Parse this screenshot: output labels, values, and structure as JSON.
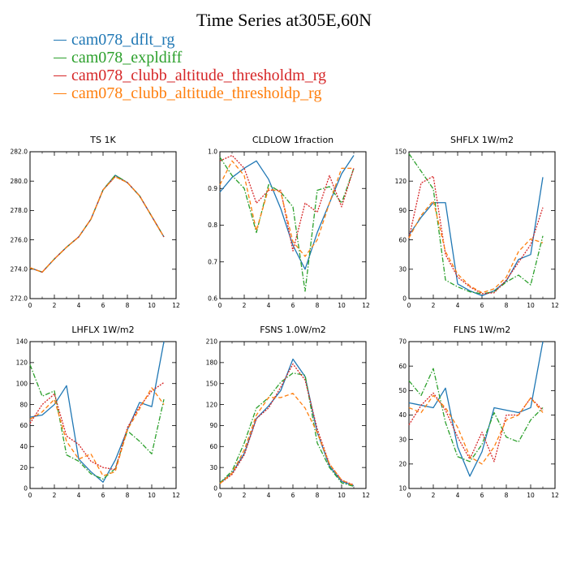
{
  "title": "Time Series at305E,60N",
  "series_meta": [
    {
      "name": "cam078_dflt_rg",
      "color": "#1f77b4",
      "dash": ""
    },
    {
      "name": "cam078_expldiff",
      "color": "#2ca02c",
      "dash": "6,2,1.5,2"
    },
    {
      "name": "cam078_clubb_altitude_thresholdm_rg",
      "color": "#d62728",
      "dash": "2,1.5"
    },
    {
      "name": "cam078_clubb_altitude_thresholdp_rg",
      "color": "#ff7f0e",
      "dash": "5,3"
    }
  ],
  "chart_data": [
    {
      "type": "line",
      "title": "TS 1K",
      "xlim": [
        0,
        12
      ],
      "ylim": [
        272,
        282
      ],
      "xticks": [
        0,
        2,
        4,
        6,
        8,
        10,
        12
      ],
      "xtick_labels": [
        "0",
        "2",
        "4",
        "6",
        "8",
        "10",
        "12"
      ],
      "yticks": [
        272,
        274,
        276,
        278,
        280,
        282
      ],
      "ytick_labels": [
        "272.0",
        "274.0",
        "276.0",
        "278.0",
        "280.0",
        "282.0"
      ],
      "x": [
        0,
        1,
        2,
        3,
        4,
        5,
        6,
        7,
        8,
        9,
        10,
        11
      ],
      "series": [
        {
          "name": "cam078_dflt_rg",
          "values": [
            274.1,
            273.8,
            274.7,
            275.5,
            276.2,
            277.4,
            279.4,
            280.4,
            279.9,
            279.0,
            277.6,
            276.2
          ]
        },
        {
          "name": "cam078_expldiff",
          "values": [
            274.1,
            273.8,
            274.7,
            275.5,
            276.2,
            277.4,
            279.4,
            280.4,
            279.9,
            279.0,
            277.6,
            276.2
          ]
        },
        {
          "name": "cam078_clubb_altitude_thresholdm_rg",
          "values": [
            274.1,
            273.8,
            274.7,
            275.5,
            276.2,
            277.4,
            279.4,
            280.3,
            279.9,
            279.0,
            277.6,
            276.2
          ]
        },
        {
          "name": "cam078_clubb_altitude_thresholdp_rg",
          "values": [
            274.1,
            273.8,
            274.7,
            275.5,
            276.2,
            277.4,
            279.4,
            280.3,
            279.9,
            279.0,
            277.6,
            276.2
          ]
        }
      ]
    },
    {
      "type": "line",
      "title": "CLDLOW 1fraction",
      "xlim": [
        0,
        12
      ],
      "ylim": [
        0.6,
        1.0
      ],
      "xticks": [
        0,
        2,
        4,
        6,
        8,
        10,
        12
      ],
      "xtick_labels": [
        "0",
        "2",
        "4",
        "6",
        "8",
        "10",
        "12"
      ],
      "yticks": [
        0.6,
        0.7,
        0.8,
        0.9,
        1.0
      ],
      "ytick_labels": [
        "0.6",
        "0.7",
        "0.8",
        "0.9",
        "1.0"
      ],
      "x": [
        0,
        1,
        2,
        3,
        4,
        5,
        6,
        7,
        8,
        9,
        10,
        11
      ],
      "series": [
        {
          "name": "cam078_dflt_rg",
          "values": [
            0.89,
            0.93,
            0.955,
            0.975,
            0.925,
            0.845,
            0.745,
            0.68,
            0.78,
            0.86,
            0.94,
            0.99
          ]
        },
        {
          "name": "cam078_expldiff",
          "values": [
            0.985,
            0.935,
            0.9,
            0.78,
            0.91,
            0.89,
            0.85,
            0.62,
            0.895,
            0.905,
            0.86,
            0.955
          ]
        },
        {
          "name": "cam078_clubb_altitude_thresholdm_rg",
          "values": [
            0.975,
            0.99,
            0.955,
            0.86,
            0.895,
            0.895,
            0.73,
            0.86,
            0.835,
            0.935,
            0.85,
            0.955
          ]
        },
        {
          "name": "cam078_clubb_altitude_thresholdp_rg",
          "values": [
            0.91,
            0.975,
            0.935,
            0.785,
            0.9,
            0.89,
            0.755,
            0.715,
            0.76,
            0.86,
            0.955,
            0.955
          ]
        }
      ]
    },
    {
      "type": "line",
      "title": "SHFLX 1W/m2",
      "xlim": [
        0,
        12
      ],
      "ylim": [
        0,
        150
      ],
      "xticks": [
        0,
        2,
        4,
        6,
        8,
        10,
        12
      ],
      "xtick_labels": [
        "0",
        "2",
        "4",
        "6",
        "8",
        "10",
        "12"
      ],
      "yticks": [
        0,
        30,
        60,
        90,
        120,
        150
      ],
      "ytick_labels": [
        "0",
        "30",
        "60",
        "90",
        "120",
        "150"
      ],
      "x": [
        0,
        1,
        2,
        3,
        4,
        5,
        6,
        7,
        8,
        9,
        10,
        11
      ],
      "series": [
        {
          "name": "cam078_dflt_rg",
          "values": [
            65,
            83,
            98,
            98,
            15,
            8,
            3,
            8,
            18,
            40,
            45,
            124
          ]
        },
        {
          "name": "cam078_expldiff",
          "values": [
            148,
            130,
            112,
            19,
            12,
            7,
            5,
            7,
            17,
            24,
            14,
            64
          ]
        },
        {
          "name": "cam078_clubb_altitude_thresholdm_rg",
          "values": [
            62,
            118,
            125,
            45,
            22,
            12,
            5,
            6,
            19,
            37,
            55,
            93
          ]
        },
        {
          "name": "cam078_clubb_altitude_thresholdp_rg",
          "values": [
            62,
            85,
            100,
            48,
            25,
            13,
            6,
            10,
            22,
            48,
            61,
            57
          ]
        }
      ]
    },
    {
      "type": "line",
      "title": "LHFLX 1W/m2",
      "xlim": [
        0,
        12
      ],
      "ylim": [
        0,
        140
      ],
      "xticks": [
        0,
        2,
        4,
        6,
        8,
        10,
        12
      ],
      "xtick_labels": [
        "0",
        "2",
        "4",
        "6",
        "8",
        "10",
        "12"
      ],
      "yticks": [
        0,
        20,
        40,
        60,
        80,
        100,
        120,
        140
      ],
      "ytick_labels": [
        "0",
        "20",
        "40",
        "60",
        "80",
        "100",
        "120",
        "140"
      ],
      "x": [
        0,
        1,
        2,
        3,
        4,
        5,
        6,
        7,
        8,
        9,
        10,
        11
      ],
      "series": [
        {
          "name": "cam078_dflt_rg",
          "values": [
            68,
            70,
            80,
            98,
            28,
            16,
            6,
            27,
            56,
            82,
            78,
            140
          ]
        },
        {
          "name": "cam078_expldiff",
          "values": [
            118,
            88,
            93,
            32,
            26,
            14,
            9,
            19,
            55,
            45,
            33,
            85
          ]
        },
        {
          "name": "cam078_clubb_altitude_thresholdm_rg",
          "values": [
            62,
            80,
            90,
            50,
            42,
            26,
            20,
            18,
            58,
            78,
            93,
            101
          ]
        },
        {
          "name": "cam078_clubb_altitude_thresholdp_rg",
          "values": [
            66,
            73,
            85,
            45,
            28,
            33,
            12,
            16,
            56,
            76,
            96,
            80
          ]
        }
      ]
    },
    {
      "type": "line",
      "title": "FSNS 1.0W/m2",
      "xlim": [
        0,
        12
      ],
      "ylim": [
        0,
        210
      ],
      "xticks": [
        0,
        2,
        4,
        6,
        8,
        10,
        12
      ],
      "xtick_labels": [
        "0",
        "2",
        "4",
        "6",
        "8",
        "10",
        "12"
      ],
      "yticks": [
        0,
        30,
        60,
        90,
        120,
        150,
        180,
        210
      ],
      "ytick_labels": [
        "0",
        "30",
        "60",
        "90",
        "120",
        "150",
        "180",
        "210"
      ],
      "x": [
        0,
        1,
        2,
        3,
        4,
        5,
        6,
        7,
        8,
        9,
        10,
        11
      ],
      "series": [
        {
          "name": "cam078_dflt_rg",
          "values": [
            8,
            22,
            50,
            100,
            118,
            140,
            185,
            160,
            80,
            32,
            10,
            4
          ]
        },
        {
          "name": "cam078_expldiff",
          "values": [
            8,
            25,
            65,
            115,
            130,
            152,
            165,
            162,
            65,
            30,
            8,
            3
          ]
        },
        {
          "name": "cam078_clubb_altitude_thresholdm_rg",
          "values": [
            7,
            20,
            48,
            100,
            115,
            145,
            178,
            155,
            85,
            35,
            12,
            5
          ]
        },
        {
          "name": "cam078_clubb_altitude_thresholdp_rg",
          "values": [
            7,
            22,
            55,
            105,
            130,
            130,
            136,
            115,
            80,
            35,
            12,
            4
          ]
        }
      ]
    },
    {
      "type": "line",
      "title": "FLNS 1W/m2",
      "xlim": [
        0,
        12
      ],
      "ylim": [
        10,
        70
      ],
      "xticks": [
        0,
        2,
        4,
        6,
        8,
        10,
        12
      ],
      "xtick_labels": [
        "0",
        "2",
        "4",
        "6",
        "8",
        "10",
        "12"
      ],
      "yticks": [
        10,
        20,
        30,
        40,
        50,
        60,
        70
      ],
      "ytick_labels": [
        "10",
        "20",
        "30",
        "40",
        "50",
        "60",
        "70"
      ],
      "x": [
        0,
        1,
        2,
        3,
        4,
        5,
        6,
        7,
        8,
        9,
        10,
        11
      ],
      "series": [
        {
          "name": "cam078_dflt_rg",
          "values": [
            45,
            44,
            43,
            51,
            27,
            15,
            25,
            43,
            42,
            41,
            43,
            70
          ]
        },
        {
          "name": "cam078_expldiff",
          "values": [
            54,
            48,
            59,
            37,
            23,
            21,
            28,
            41,
            31,
            29,
            38,
            43
          ]
        },
        {
          "name": "cam078_clubb_altitude_thresholdm_rg",
          "values": [
            36,
            44,
            49,
            42,
            31,
            22,
            33,
            21,
            40,
            40,
            47,
            42
          ]
        },
        {
          "name": "cam078_clubb_altitude_thresholdp_rg",
          "values": [
            43,
            41,
            48,
            43,
            35,
            23,
            20,
            27,
            38,
            40,
            47,
            41
          ]
        }
      ]
    }
  ]
}
